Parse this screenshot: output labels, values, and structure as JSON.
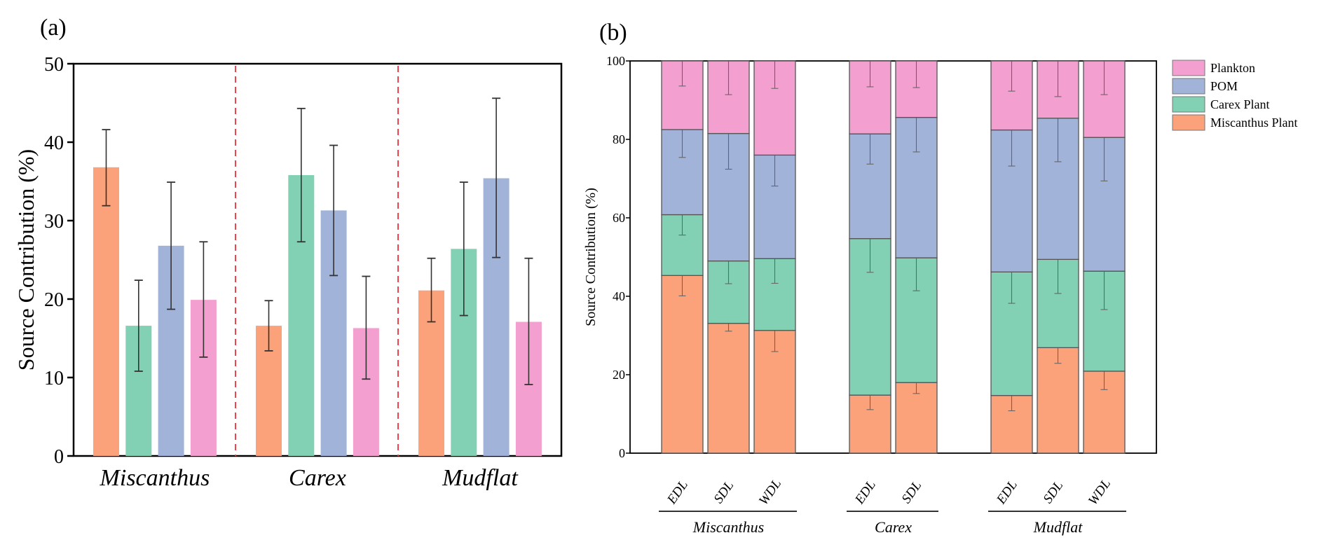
{
  "chart_data": [
    {
      "panel_label": "(a)",
      "type": "bar",
      "title": "",
      "xlabel": "",
      "ylabel": "Source Contribution (%)",
      "ylim": [
        0,
        50
      ],
      "yticks": [
        0,
        10,
        20,
        30,
        40,
        50
      ],
      "grid": false,
      "categories": [
        "Miscanthus",
        "Carex",
        "Mudflat"
      ],
      "category_separators": "red dashed vertical lines",
      "series": [
        {
          "name": "Miscanthus Plant",
          "color": "#fca27a",
          "values": [
            36.8,
            16.6,
            21.1
          ],
          "err_low": [
            31.9,
            13.4,
            17.1
          ],
          "err_high": [
            41.6,
            19.8,
            25.2
          ]
        },
        {
          "name": "Carex Plant",
          "color": "#82d1b5",
          "values": [
            16.6,
            35.8,
            26.4
          ],
          "err_low": [
            10.8,
            27.3,
            17.9
          ],
          "err_high": [
            22.4,
            44.3,
            34.9
          ]
        },
        {
          "name": "POM",
          "color": "#a1b3d9",
          "values": [
            26.8,
            31.3,
            35.4
          ],
          "err_low": [
            18.7,
            23.0,
            25.3
          ],
          "err_high": [
            34.9,
            39.6,
            45.6
          ]
        },
        {
          "name": "Plankton",
          "color": "#f3a0d0",
          "values": [
            19.9,
            16.3,
            17.1
          ],
          "err_low": [
            12.6,
            9.8,
            9.1
          ],
          "err_high": [
            27.3,
            22.9,
            25.2
          ]
        }
      ]
    },
    {
      "panel_label": "(b)",
      "type": "bar",
      "stacked": true,
      "title": "",
      "xlabel": "",
      "ylabel": "Source Contribution (%)",
      "ylim": [
        0,
        100
      ],
      "yticks": [
        0,
        20,
        40,
        60,
        80,
        100
      ],
      "grid": false,
      "legend_position": "right",
      "groups": [
        {
          "name": "Miscanthus",
          "bars": [
            "EDL",
            "SDL",
            "WDL"
          ]
        },
        {
          "name": "Carex",
          "bars": [
            "EDL",
            "SDL"
          ]
        },
        {
          "name": "Mudflat",
          "bars": [
            "EDL",
            "SDL",
            "WDL"
          ]
        }
      ],
      "x": [
        "Miscanthus EDL",
        "Miscanthus SDL",
        "Miscanthus WDL",
        "Carex EDL",
        "Carex SDL",
        "Mudflat EDL",
        "Mudflat SDL",
        "Mudflat WDL"
      ],
      "series": [
        {
          "name": "Miscanthus Plant",
          "color": "#fca27a",
          "values": [
            45.3,
            33.1,
            31.3,
            14.8,
            18.0,
            14.7,
            26.9,
            20.9
          ],
          "err_lower_end": [
            40.1,
            31.1,
            25.9,
            11.1,
            15.2,
            10.8,
            22.9,
            16.2
          ]
        },
        {
          "name": "Carex Plant",
          "color": "#82d1b5",
          "values": [
            15.5,
            15.9,
            18.3,
            39.9,
            31.8,
            31.5,
            22.5,
            25.5
          ],
          "err_lower_end": [
            55.6,
            43.2,
            43.3,
            46.1,
            41.4,
            38.2,
            40.7,
            36.6
          ]
        },
        {
          "name": "POM",
          "color": "#a1b3d9",
          "values": [
            21.7,
            32.5,
            26.4,
            26.7,
            35.8,
            36.2,
            36.0,
            34.1
          ],
          "err_lower_end": [
            75.4,
            72.4,
            68.1,
            73.7,
            76.8,
            73.2,
            74.3,
            69.4
          ]
        },
        {
          "name": "Plankton",
          "color": "#f3a0d0",
          "values": [
            17.5,
            18.5,
            24.0,
            18.6,
            14.4,
            17.6,
            14.6,
            19.5
          ],
          "err_lower_end": [
            93.6,
            91.4,
            93.0,
            93.4,
            93.2,
            92.3,
            90.9,
            91.4
          ]
        }
      ],
      "legend": [
        "Plankton",
        "POM",
        "Carex Plant",
        "Miscanthus Plant"
      ]
    }
  ]
}
